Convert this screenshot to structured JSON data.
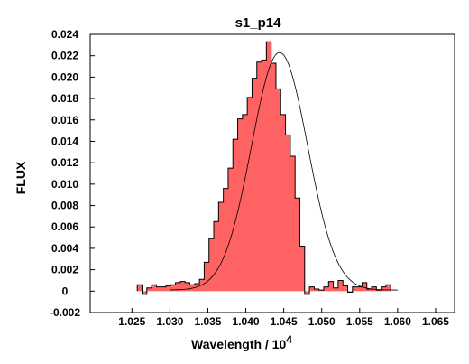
{
  "chart_data": {
    "type": "bar",
    "title": "s1_p14",
    "xlabel": "Wavelength / 10",
    "xlabel_exponent": "4",
    "ylabel": "FLUX",
    "xlim": [
      1.0195,
      1.0675
    ],
    "ylim": [
      -0.002,
      0.024
    ],
    "grid": false,
    "xticks": [
      "1.025",
      "1.030",
      "1.035",
      "1.040",
      "1.045",
      "1.050",
      "1.055",
      "1.060",
      "1.065"
    ],
    "yticks": [
      "-0.002",
      "0",
      "0.002",
      "0.004",
      "0.006",
      "0.008",
      "0.010",
      "0.012",
      "0.014",
      "0.016",
      "0.018",
      "0.020",
      "0.022",
      "0.024"
    ],
    "histogram_color": "#ff6262",
    "fit_color": "#000000",
    "series": [
      {
        "type": "histogram",
        "bin_width": 0.00063,
        "bin_start": 1.0257,
        "values": [
          0.0006,
          -0.0003,
          0.0003,
          0.0006,
          0.0004,
          0.0004,
          0.0005,
          0.0006,
          0.0008,
          0.0009,
          0.0008,
          0.0006,
          0.0007,
          0.0011,
          0.0027,
          0.0049,
          0.0065,
          0.0083,
          0.0096,
          0.0115,
          0.0142,
          0.0161,
          0.0165,
          0.0181,
          0.0199,
          0.0214,
          0.0216,
          0.0233,
          0.0213,
          0.0189,
          0.0165,
          0.0146,
          0.0126,
          0.0087,
          0.0042,
          -0.0003,
          0.0004,
          0.0002,
          0.0001,
          0.0004,
          0.0009,
          0.0003,
          0.001,
          0.0005,
          -0.0001,
          0.0004,
          0.0004,
          0.0008,
          0.0002,
          0.0004,
          0.0001,
          0.0004,
          0.0006
        ]
      },
      {
        "type": "gaussian-fit",
        "amplitude": 0.0222,
        "center": 1.04445,
        "sigma": 0.0037,
        "baseline": 0.0001
      }
    ]
  }
}
